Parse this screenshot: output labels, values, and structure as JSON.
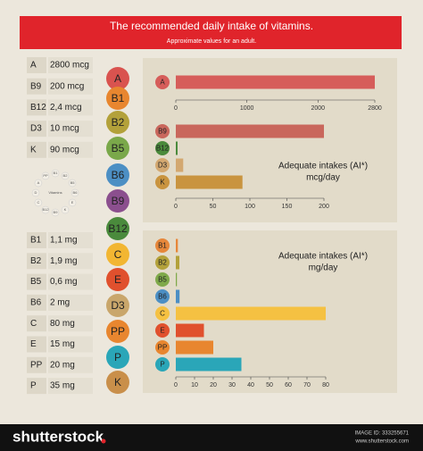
{
  "header": {
    "title": "The recommended daily intake of vitamins.",
    "subtitle": "Approximate values for an adult."
  },
  "left_tables": [
    {
      "rows": [
        [
          "A",
          "2800 mcg"
        ],
        [
          "B9",
          "200 mcg"
        ],
        [
          "B12",
          "2,4 mcg"
        ],
        [
          "D3",
          "10 mcg"
        ],
        [
          "K",
          "90 mcg"
        ]
      ]
    },
    {
      "rows": [
        [
          "B1",
          "1,1 mg"
        ],
        [
          "B2",
          "1,9 mg"
        ],
        [
          "B5",
          "0,6 mg"
        ],
        [
          "B6",
          "2 mg"
        ],
        [
          "C",
          "80 mg"
        ],
        [
          "E",
          "15 mg"
        ],
        [
          "PP",
          "20 mg"
        ],
        [
          "P",
          "35 mg"
        ]
      ]
    }
  ],
  "wheel": {
    "center": "Vitamins",
    "labels": [
      "B1",
      "B2",
      "B5",
      "B6",
      "E",
      "K",
      "B9",
      "B12",
      "C",
      "D",
      "A",
      "PP"
    ]
  },
  "circles": [
    {
      "label": "A",
      "color": "#d9534f"
    },
    {
      "label": "B1",
      "color": "#e8862f"
    },
    {
      "label": "B2",
      "color": "#b3a13a"
    },
    {
      "label": "B5",
      "color": "#7aa84a"
    },
    {
      "label": "B6",
      "color": "#4c8fc4"
    },
    {
      "label": "B9",
      "color": "#8b4f8e"
    },
    {
      "label": "B12",
      "color": "#4a8a3c"
    },
    {
      "label": "C",
      "color": "#f2b632"
    },
    {
      "label": "E",
      "color": "#e0502d"
    },
    {
      "label": "D3",
      "color": "#c9a66b"
    },
    {
      "label": "PP",
      "color": "#e8862f"
    },
    {
      "label": "P",
      "color": "#2aa6b8"
    },
    {
      "label": "K",
      "color": "#c98f4a"
    }
  ],
  "chart_data": [
    {
      "type": "bar",
      "orientation": "horizontal",
      "categories": [
        "A"
      ],
      "values": [
        2800
      ],
      "colors": [
        "#d65d5a"
      ],
      "xlim": [
        0,
        2800
      ],
      "xticks": [
        0,
        1000,
        2000,
        2800
      ]
    },
    {
      "type": "bar",
      "orientation": "horizontal",
      "categories": [
        "B9",
        "B12",
        "D3",
        "K"
      ],
      "values": [
        200,
        2.4,
        10,
        90
      ],
      "colors": [
        "#c9675c",
        "#4a8a3c",
        "#d3a870",
        "#c9943f"
      ],
      "xlim": [
        0,
        200
      ],
      "xticks": [
        0,
        50,
        100,
        150,
        200
      ],
      "annotation": [
        "Adequate intakes (AI*)",
        "mcg/day"
      ]
    },
    {
      "type": "bar",
      "orientation": "horizontal",
      "categories": [
        "B1",
        "B2",
        "B5",
        "B6",
        "C",
        "E",
        "PP",
        "P"
      ],
      "values": [
        1.1,
        1.9,
        0.6,
        2,
        80,
        15,
        20,
        35
      ],
      "colors": [
        "#e6873a",
        "#b3a13a",
        "#7fa94a",
        "#4c8fc4",
        "#f5c142",
        "#e0502d",
        "#e8862f",
        "#2aa6b8"
      ],
      "xlim": [
        0,
        80
      ],
      "xticks": [
        0,
        10,
        20,
        30,
        40,
        50,
        60,
        70,
        80
      ],
      "annotation": [
        "Adequate intakes (AI*)",
        "mg/day"
      ]
    }
  ],
  "footer": {
    "brand": "shutterstock",
    "image_id": "IMAGE ID: 333255671",
    "site": "www.shutterstock.com"
  }
}
